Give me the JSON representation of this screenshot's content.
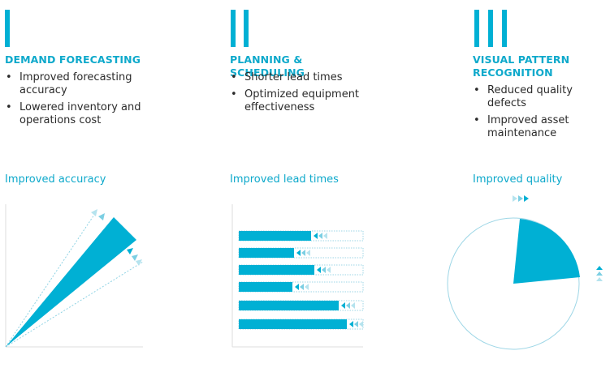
{
  "columns": [
    {
      "heading": "DEMAND FORECASTING",
      "bullets": [
        "Improved forecasting accuracy",
        "Lowered inventory and operations cost"
      ],
      "caption": "Improved accuracy"
    },
    {
      "heading": "PLANNING & SCHEDULING",
      "bullets": [
        "Shorter lead times",
        "Optimized equipment effectiveness"
      ],
      "caption": "Improved lead times"
    },
    {
      "heading": "VISUAL PATTERN RECOGNITION",
      "bullets": [
        "Reduced quality defects",
        "Improved asset maintenance"
      ],
      "caption": "Improved quality"
    }
  ]
}
